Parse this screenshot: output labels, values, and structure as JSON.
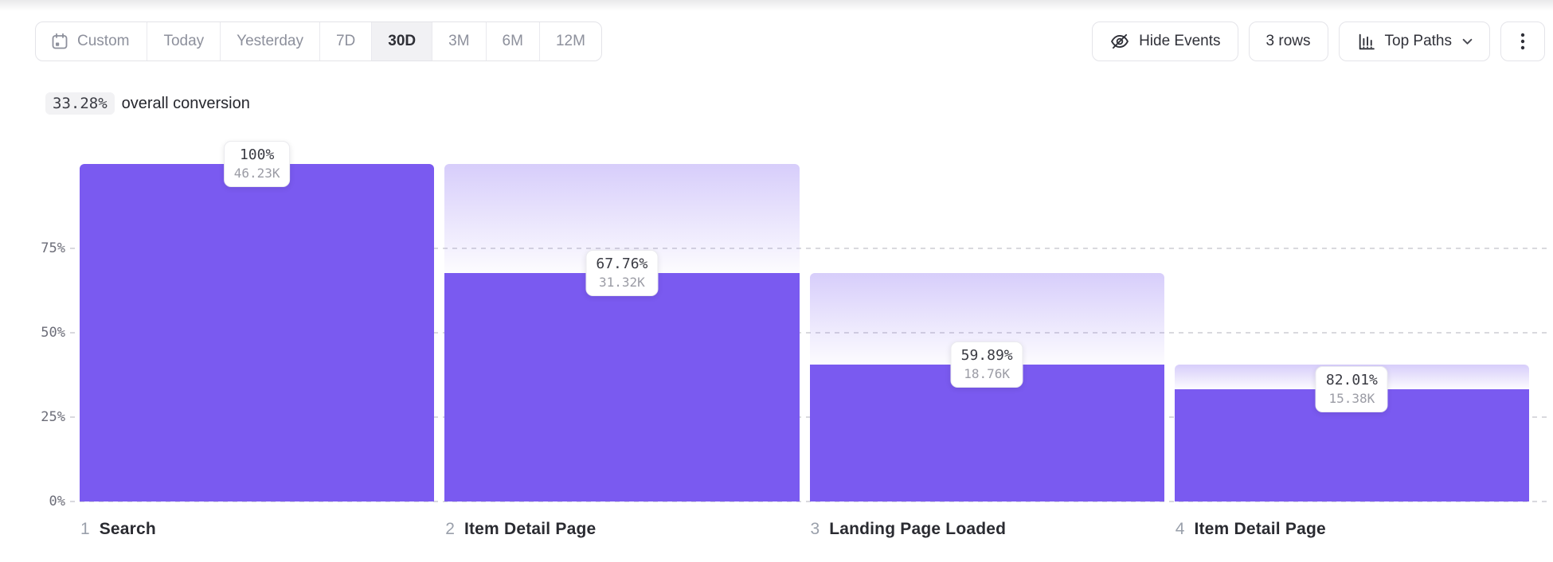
{
  "toolbar": {
    "date_ranges": [
      {
        "label": "Custom",
        "icon": "calendar-icon",
        "selected": false
      },
      {
        "label": "Today",
        "selected": false
      },
      {
        "label": "Yesterday",
        "selected": false
      },
      {
        "label": "7D",
        "selected": false
      },
      {
        "label": "30D",
        "selected": true
      },
      {
        "label": "3M",
        "selected": false
      },
      {
        "label": "6M",
        "selected": false
      },
      {
        "label": "12M",
        "selected": false
      }
    ],
    "hide_events_label": "Hide Events",
    "rows_label": "3 rows",
    "top_paths_label": "Top Paths"
  },
  "summary": {
    "value": "33.28%",
    "text": "overall conversion"
  },
  "chart_data": {
    "type": "funnel",
    "overall_conversion": "33.28%",
    "y_axis": {
      "range": [
        0,
        100
      ],
      "ticks": [
        {
          "label": "75%",
          "value": 75
        },
        {
          "label": "50%",
          "value": 50
        },
        {
          "label": "25%",
          "value": 25
        },
        {
          "label": "0%",
          "value": 0
        }
      ]
    },
    "steps": [
      {
        "index": "1",
        "name": "Search",
        "conversion_from_previous": "100%",
        "count": "46.23K",
        "pct_of_first": 100,
        "prev_pct_of_first": 100
      },
      {
        "index": "2",
        "name": "Item Detail Page",
        "conversion_from_previous": "67.76%",
        "count": "31.32K",
        "pct_of_first": 67.75,
        "prev_pct_of_first": 100
      },
      {
        "index": "3",
        "name": "Landing Page Loaded",
        "conversion_from_previous": "59.89%",
        "count": "18.76K",
        "pct_of_first": 40.58,
        "prev_pct_of_first": 67.75
      },
      {
        "index": "4",
        "name": "Item Detail Page",
        "conversion_from_previous": "82.01%",
        "count": "15.38K",
        "pct_of_first": 33.27,
        "prev_pct_of_first": 40.58
      }
    ],
    "colors": {
      "bar": "#7A5AF0",
      "bar_fade_top": "rgba(122,90,240,0.30)",
      "bar_fade_bottom": "rgba(122,90,240,0.02)",
      "gridline": "#d9d9de"
    }
  }
}
